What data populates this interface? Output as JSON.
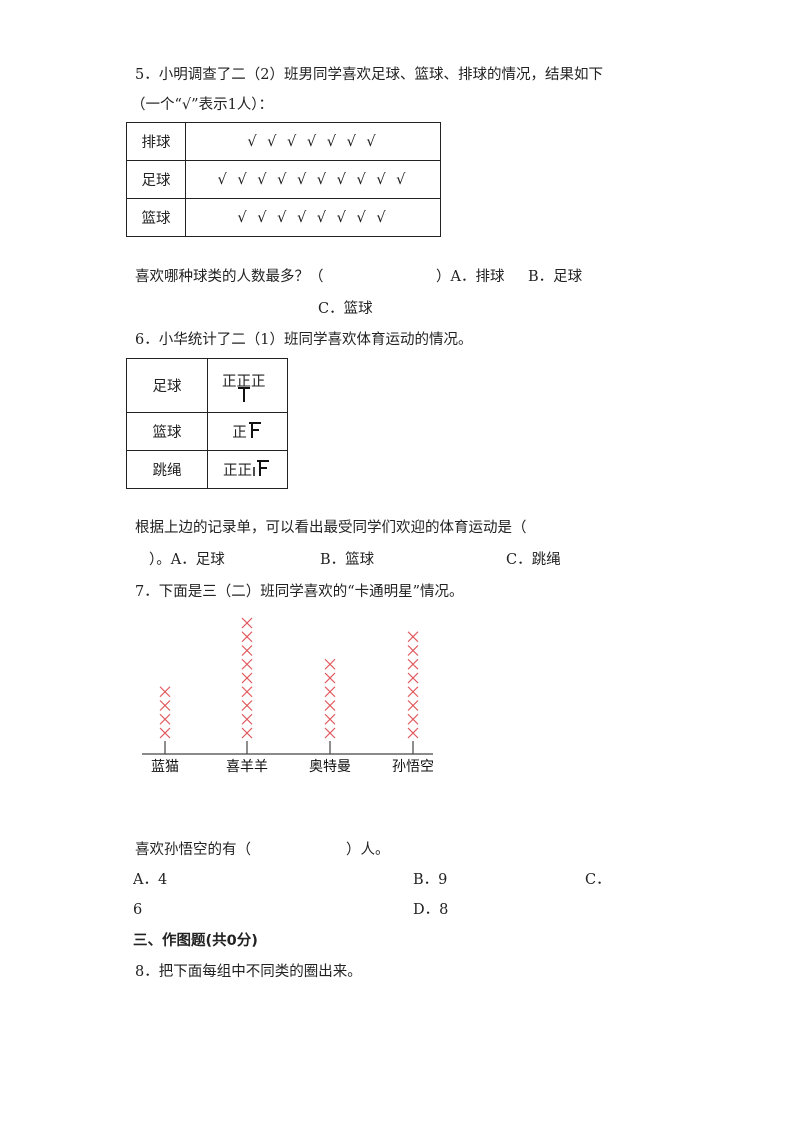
{
  "q5": {
    "line1": "5．小明调查了二（2）班男同学喜欢足球、篮球、排球的情况，结果如下",
    "line2": "（一个“√”表示1人）：",
    "rows": [
      {
        "label": "排球",
        "checks": "√ √ √ √ √ √ √",
        "count": 7
      },
      {
        "label": "足球",
        "checks": "√ √ √ √ √ √ √ √ √ √",
        "count": 10
      },
      {
        "label": "篮球",
        "checks": "√ √ √ √ √ √ √ √",
        "count": 8
      }
    ],
    "question": "喜欢哪种球类的人数最多？（",
    "paren_close": "）A．排球",
    "option_b": "B．足球",
    "option_c": "C．篮球"
  },
  "q6": {
    "title": "6．小华统计了二（1）班同学喜欢体育运动的情况。",
    "rows": [
      {
        "label": "足球",
        "tally": "正正正"
      },
      {
        "label": "篮球",
        "tally": "正"
      },
      {
        "label": "跳绳",
        "tally": "正正"
      }
    ],
    "question": "根据上边的记录单，可以看出最受同学们欢迎的体育运动是（",
    "line2_a": "）。A．足球",
    "option_b": "B．篮球",
    "option_c": "C．跳绳"
  },
  "q7": {
    "title": "7．下面是三（二）班同学喜欢的“卡通明星”情况。",
    "chart_data": {
      "type": "pictograph",
      "categories": [
        "蓝猫",
        "喜羊羊",
        "奥特曼",
        "孙悟空"
      ],
      "values": [
        4,
        9,
        6,
        8
      ],
      "marker": "×",
      "marker_color": "#e0575b"
    },
    "question": "喜欢孙悟空的有（",
    "question_end": "）人。",
    "option_a": "A．4",
    "option_b": "B．9",
    "option_c": "C．",
    "option_c_value": "6",
    "option_d": "D．8"
  },
  "section3": {
    "title": "三、作图题(共0分)"
  },
  "q8": {
    "title": "8．把下面每组中不同类的圈出来。"
  }
}
